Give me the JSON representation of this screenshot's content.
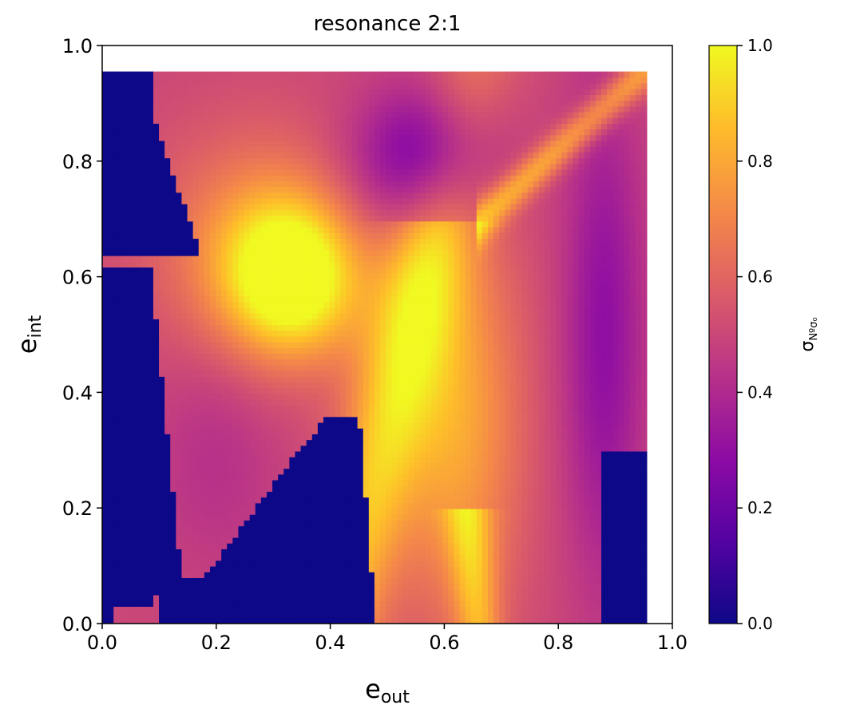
{
  "chart_data": {
    "type": "heatmap",
    "title": "resonance 2:1",
    "xlabel": {
      "base": "e",
      "sub": "out"
    },
    "ylabel": {
      "base": "e",
      "sub": "int"
    },
    "xlim": [
      0.0,
      1.0
    ],
    "ylim": [
      0.0,
      1.0
    ],
    "x_ticks": [
      "0.0",
      "0.2",
      "0.4",
      "0.6",
      "0.8",
      "1.0"
    ],
    "y_ticks": [
      "0.0",
      "0.2",
      "0.4",
      "0.6",
      "0.8",
      "1.0"
    ],
    "data_extent": {
      "x": [
        0.0,
        0.955
      ],
      "y": [
        0.0,
        0.955
      ]
    },
    "grid": false,
    "colormap": "plasma",
    "colorbar": {
      "label": {
        "base": "σ",
        "sub": "Nºσ₀"
      },
      "range": [
        0.0,
        1.0
      ],
      "ticks": [
        "0.0",
        "0.2",
        "0.4",
        "0.6",
        "0.8",
        "1.0"
      ]
    },
    "colormap_stops": [
      "#0d0887",
      "#5302a3",
      "#8b0aa5",
      "#b83289",
      "#db5c68",
      "#f48849",
      "#febd2a",
      "#f0f921"
    ],
    "regions": [
      {
        "description": "stable (zero) region left edge",
        "value": 0.0
      },
      {
        "description": "stable (zero) region bottom center",
        "value": 0.0
      },
      {
        "description": "stable (zero) region right edge",
        "value": 0.0
      },
      {
        "description": "chaotic peak near e_out 0.33, e_int 0.6",
        "value": 1.0
      },
      {
        "description": "chaotic band diagonal e_out 0.55-0.9",
        "value": 0.85
      },
      {
        "description": "moderate region upper center",
        "value": 0.35
      }
    ]
  }
}
